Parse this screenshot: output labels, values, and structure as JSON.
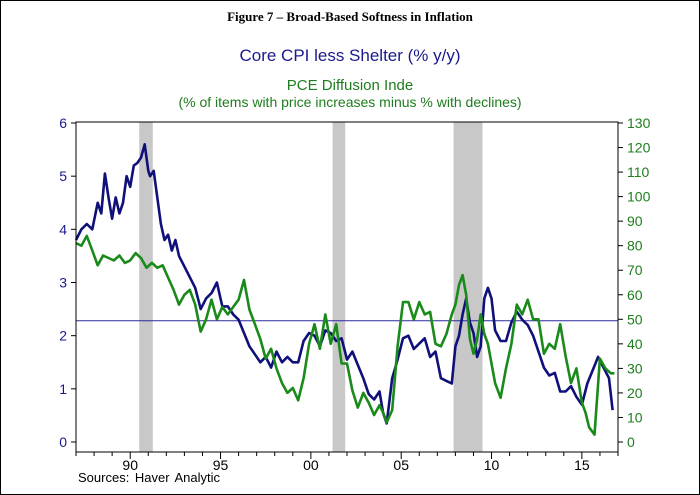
{
  "chart_data": {
    "type": "line",
    "figure_title": "Figure 7 – Broad-Based Softness in Inflation",
    "title_left": "Core CPI less Shelter (% y/y)",
    "title_right": "PCE Diffusion Inde",
    "subtitle_right": "(% of items with price increases minus % with declines)",
    "source": "Sources:   Haver Analytic",
    "x_range": [
      1987.0,
      2017.0
    ],
    "x_ticks": [
      {
        "year": 1990,
        "label": "90"
      },
      {
        "year": 1995,
        "label": "95"
      },
      {
        "year": 2000,
        "label": "00"
      },
      {
        "year": 2005,
        "label": "05"
      },
      {
        "year": 2010,
        "label": "10"
      },
      {
        "year": 2015,
        "label": "15"
      }
    ],
    "y_left": {
      "range": [
        0,
        6
      ],
      "ticks": [
        "0",
        "1",
        "2",
        "3",
        "4",
        "5",
        "6"
      ]
    },
    "y_right": {
      "range": [
        0,
        130
      ],
      "ticks": [
        "0",
        "10",
        "20",
        "30",
        "40",
        "50",
        "60",
        "70",
        "80",
        "90",
        "100",
        "110",
        "120",
        "130"
      ]
    },
    "reference_line": {
      "axis": "left",
      "value": 2.28,
      "color": "#2a2aa0"
    },
    "recessions": [
      [
        1990.5,
        1991.25
      ],
      [
        2001.2,
        2001.9
      ],
      [
        2007.9,
        2009.5
      ]
    ],
    "series": [
      {
        "name": "Core CPI less Shelter",
        "axis": "left",
        "color": "#10107a",
        "x": [
          1987.0,
          1987.3,
          1987.6,
          1987.9,
          1988.2,
          1988.4,
          1988.6,
          1988.8,
          1989.0,
          1989.2,
          1989.4,
          1989.6,
          1989.8,
          1990.0,
          1990.2,
          1990.4,
          1990.6,
          1990.8,
          1991.0,
          1991.1,
          1991.3,
          1991.5,
          1991.7,
          1991.9,
          1992.1,
          1992.3,
          1992.5,
          1992.7,
          1993.0,
          1993.3,
          1993.6,
          1993.9,
          1994.2,
          1994.5,
          1994.8,
          1995.1,
          1995.4,
          1995.7,
          1996.0,
          1996.3,
          1996.6,
          1996.9,
          1997.2,
          1997.5,
          1997.8,
          1998.1,
          1998.4,
          1998.7,
          1999.0,
          1999.3,
          1999.6,
          1999.9,
          2000.2,
          2000.5,
          2000.8,
          2001.1,
          2001.4,
          2001.7,
          2002.0,
          2002.3,
          2002.6,
          2002.9,
          2003.2,
          2003.5,
          2003.8,
          2004.0,
          2004.2,
          2004.5,
          2004.8,
          2005.1,
          2005.4,
          2005.7,
          2006.0,
          2006.3,
          2006.6,
          2006.9,
          2007.2,
          2007.5,
          2007.8,
          2008.0,
          2008.2,
          2008.4,
          2008.6,
          2008.8,
          2009.0,
          2009.2,
          2009.4,
          2009.6,
          2009.8,
          2010.0,
          2010.2,
          2010.5,
          2010.8,
          2011.1,
          2011.4,
          2011.7,
          2012.0,
          2012.3,
          2012.6,
          2012.9,
          2013.2,
          2013.5,
          2013.8,
          2014.1,
          2014.4,
          2014.7,
          2015.0,
          2015.3,
          2015.6,
          2015.9,
          2016.2,
          2016.5,
          2016.7
        ],
        "values": [
          3.8,
          4.0,
          4.1,
          4.0,
          4.5,
          4.3,
          5.05,
          4.6,
          4.2,
          4.6,
          4.3,
          4.5,
          5.0,
          4.8,
          5.2,
          5.25,
          5.35,
          5.6,
          5.1,
          5.0,
          5.1,
          4.6,
          4.1,
          3.8,
          3.9,
          3.6,
          3.8,
          3.5,
          3.3,
          3.1,
          2.9,
          2.5,
          2.7,
          2.8,
          3.0,
          2.55,
          2.55,
          2.4,
          2.3,
          2.05,
          1.8,
          1.65,
          1.5,
          1.6,
          1.4,
          1.7,
          1.5,
          1.6,
          1.5,
          1.5,
          1.9,
          2.05,
          2.0,
          1.8,
          2.1,
          2.05,
          1.9,
          1.95,
          1.55,
          1.7,
          1.45,
          1.2,
          0.9,
          0.8,
          0.95,
          0.55,
          0.35,
          1.2,
          1.55,
          1.95,
          2.0,
          1.75,
          1.85,
          1.95,
          1.6,
          1.7,
          1.2,
          1.15,
          1.1,
          1.8,
          2.0,
          2.4,
          2.7,
          2.25,
          2.05,
          1.6,
          1.8,
          2.7,
          2.9,
          2.7,
          2.1,
          1.9,
          1.9,
          2.25,
          2.45,
          2.3,
          2.2,
          2.0,
          1.7,
          1.4,
          1.25,
          1.3,
          0.95,
          0.95,
          1.05,
          0.85,
          0.7,
          1.1,
          1.35,
          1.6,
          1.4,
          1.2,
          0.6
        ]
      },
      {
        "name": "PCE Diffusion Index",
        "axis": "right",
        "color": "#1a8a1a",
        "x": [
          1987.0,
          1987.3,
          1987.6,
          1987.9,
          1988.2,
          1988.5,
          1988.8,
          1989.1,
          1989.4,
          1989.7,
          1990.0,
          1990.3,
          1990.6,
          1990.9,
          1991.2,
          1991.5,
          1991.8,
          1992.1,
          1992.4,
          1992.7,
          1993.0,
          1993.3,
          1993.6,
          1993.9,
          1994.2,
          1994.5,
          1994.8,
          1995.1,
          1995.4,
          1995.7,
          1996.0,
          1996.3,
          1996.6,
          1996.9,
          1997.2,
          1997.5,
          1997.8,
          1998.1,
          1998.4,
          1998.7,
          1999.0,
          1999.3,
          1999.6,
          1999.9,
          2000.2,
          2000.5,
          2000.8,
          2001.1,
          2001.4,
          2001.7,
          2002.0,
          2002.3,
          2002.6,
          2002.9,
          2003.2,
          2003.5,
          2003.8,
          2004.0,
          2004.2,
          2004.5,
          2004.8,
          2005.1,
          2005.4,
          2005.7,
          2006.0,
          2006.3,
          2006.6,
          2006.9,
          2007.2,
          2007.5,
          2007.8,
          2008.0,
          2008.2,
          2008.4,
          2008.6,
          2008.8,
          2009.0,
          2009.2,
          2009.4,
          2009.6,
          2009.8,
          2010.0,
          2010.2,
          2010.5,
          2010.8,
          2011.1,
          2011.4,
          2011.7,
          2012.0,
          2012.3,
          2012.6,
          2012.9,
          2013.2,
          2013.5,
          2013.8,
          2014.1,
          2014.4,
          2014.7,
          2015.0,
          2015.2,
          2015.4,
          2015.7,
          2016.0,
          2016.3,
          2016.6,
          2016.8
        ],
        "values": [
          81,
          80,
          84,
          78,
          72,
          76,
          75,
          74,
          76,
          73,
          74,
          77,
          75,
          71,
          73,
          71,
          72,
          67,
          62,
          56,
          60,
          62,
          56,
          45,
          50,
          58,
          50,
          55,
          52,
          55,
          58,
          66,
          54,
          48,
          42,
          34,
          38,
          30,
          24,
          20,
          22,
          17,
          26,
          40,
          48,
          38,
          52,
          40,
          48,
          32,
          32,
          21,
          14,
          20,
          16,
          11,
          15,
          12,
          8,
          13,
          39,
          57,
          57,
          50,
          57,
          52,
          53,
          40,
          39,
          44,
          52,
          56,
          64,
          68,
          60,
          42,
          36,
          42,
          52,
          44,
          40,
          32,
          24,
          18,
          30,
          40,
          56,
          52,
          58,
          50,
          50,
          36,
          40,
          38,
          48,
          35,
          24,
          30,
          16,
          12,
          6,
          3,
          34,
          30,
          28,
          28
        ]
      }
    ]
  }
}
